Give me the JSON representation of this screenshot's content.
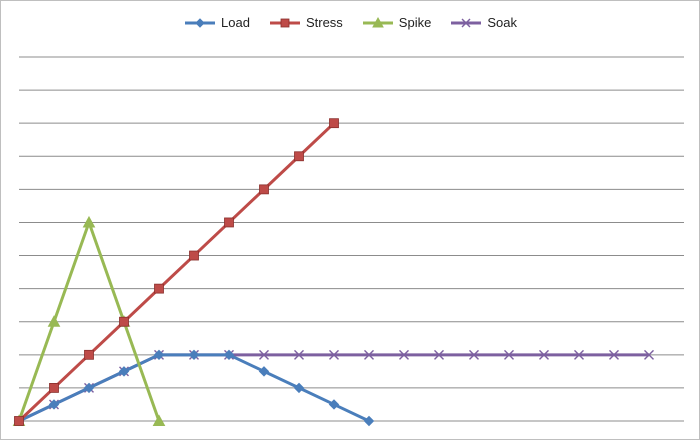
{
  "chart_data": {
    "type": "line",
    "title": "",
    "xlabel": "",
    "ylabel": "",
    "ylim": [
      0,
      11
    ],
    "grid": true,
    "legend_position": "top-center",
    "series": [
      {
        "name": "Load",
        "color": "#4a7ebb",
        "marker": "diamond",
        "x": [
          0,
          1,
          2,
          3,
          4,
          5,
          6,
          7,
          8,
          9,
          10
        ],
        "y": [
          0,
          0.5,
          1,
          1.5,
          2,
          2,
          2,
          1.5,
          1,
          0.5,
          0
        ]
      },
      {
        "name": "Stress",
        "color": "#be4b48",
        "marker": "square",
        "x": [
          0,
          1,
          2,
          3,
          4,
          5,
          6,
          7,
          8,
          9
        ],
        "y": [
          0,
          1,
          2,
          3,
          4,
          5,
          6,
          7,
          8,
          9
        ]
      },
      {
        "name": "Spike",
        "color": "#98b954",
        "marker": "triangle",
        "x": [
          0,
          1,
          2,
          3,
          4
        ],
        "y": [
          0,
          3,
          6,
          3,
          0
        ]
      },
      {
        "name": "Soak",
        "color": "#7d60a0",
        "marker": "x",
        "x": [
          0,
          1,
          2,
          3,
          4,
          5,
          6,
          7,
          8,
          9,
          10,
          11,
          12,
          13,
          14,
          15,
          16,
          17,
          18
        ],
        "y": [
          0,
          0.5,
          1,
          1.5,
          2,
          2,
          2,
          2,
          2,
          2,
          2,
          2,
          2,
          2,
          2,
          2,
          2,
          2,
          2
        ]
      }
    ]
  }
}
